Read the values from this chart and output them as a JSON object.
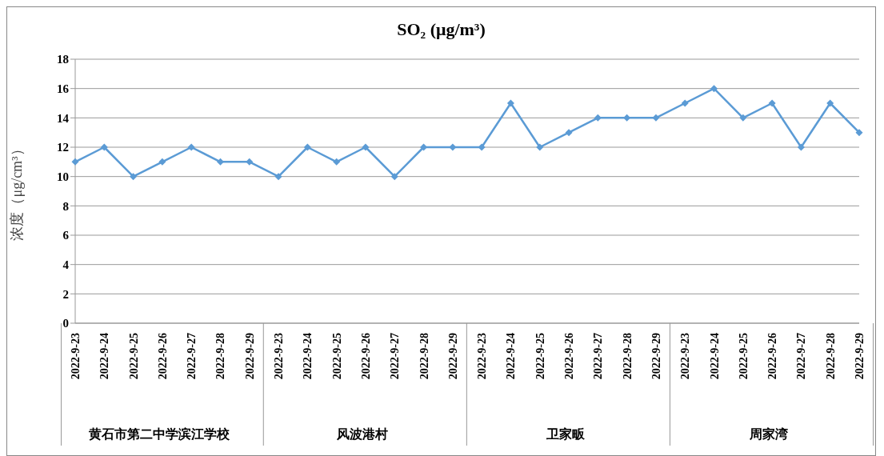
{
  "chart_data": {
    "type": "line",
    "title": "SO₂ (μg/m³)",
    "ylabel": "浓度（μg/cm³）",
    "categories": [
      "2022-9-23",
      "2022-9-24",
      "2022-9-25",
      "2022-9-26",
      "2022-9-27",
      "2022-9-28",
      "2022-9-29",
      "2022-9-23",
      "2022-9-24",
      "2022-9-25",
      "2022-9-26",
      "2022-9-27",
      "2022-9-28",
      "2022-9-29",
      "2022-9-23",
      "2022-9-24",
      "2022-9-25",
      "2022-9-26",
      "2022-9-27",
      "2022-9-28",
      "2022-9-29",
      "2022-9-23",
      "2022-9-24",
      "2022-9-25",
      "2022-9-26",
      "2022-9-27",
      "2022-9-28",
      "2022-9-29"
    ],
    "values": [
      11,
      12,
      10,
      11,
      12,
      11,
      11,
      10,
      12,
      11,
      12,
      10,
      12,
      12,
      12,
      15,
      12,
      13,
      14,
      14,
      14,
      15,
      16,
      14,
      15,
      12,
      15,
      13
    ],
    "color": "#5b9bd5",
    "annotations": [
      "黄石市第二中学滨江学校",
      "风波港村",
      "卫家畈",
      "周家湾"
    ],
    "ylim": [
      0,
      18
    ],
    "yticks": [
      0,
      2,
      4,
      6,
      8,
      10,
      12,
      14,
      16,
      18
    ],
    "grid": "y",
    "marker": "diamond",
    "line_style": "solid",
    "legend": false
  }
}
